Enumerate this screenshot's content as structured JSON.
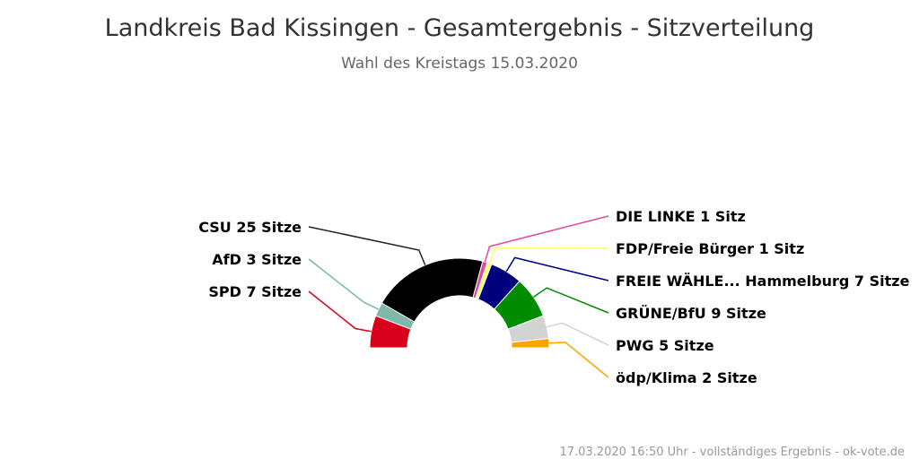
{
  "chart_data": {
    "type": "pie",
    "variant": "semicircle-parliament",
    "title": "Landkreis Bad Kissingen - Gesamtergebnis - Sitzverteilung",
    "subtitle": "Wahl des Kreistags 15.03.2020",
    "credits": "17.03.2020 16:50 Uhr - vollständiges Ergebnis - ok-vote.de",
    "total_seats": 60,
    "series": [
      {
        "name": "SPD",
        "seats": 7,
        "label": "SPD 7 Sitze",
        "color": "#d9001c"
      },
      {
        "name": "AfD",
        "seats": 3,
        "label": "AfD 3 Sitze",
        "color": "#7fb7a9"
      },
      {
        "name": "CSU",
        "seats": 25,
        "label": "CSU 25 Sitze",
        "color": "#000000"
      },
      {
        "name": "DIE LINKE",
        "seats": 1,
        "label": "DIE LINKE 1 Sitz",
        "color": "#e3469a"
      },
      {
        "name": "FDP/Freie Bürger",
        "seats": 1,
        "label": "FDP/Freie Bürger 1 Sitz",
        "color": "#ffff66"
      },
      {
        "name": "FREIE WÄHLE... Hammelburg",
        "seats": 7,
        "label": "FREIE WÄHLE... Hammelburg 7 Sitze",
        "color": "#00007f"
      },
      {
        "name": "GRÜNE/BfU",
        "seats": 9,
        "label": "GRÜNE/BfU 9 Sitze",
        "color": "#008c00"
      },
      {
        "name": "PWG",
        "seats": 5,
        "label": "PWG 5 Sitze",
        "color": "#d3d3d3"
      },
      {
        "name": "ödp/Klima",
        "seats": 2,
        "label": "ödp/Klima 2 Sitze",
        "color": "#ffa500"
      }
    ]
  }
}
